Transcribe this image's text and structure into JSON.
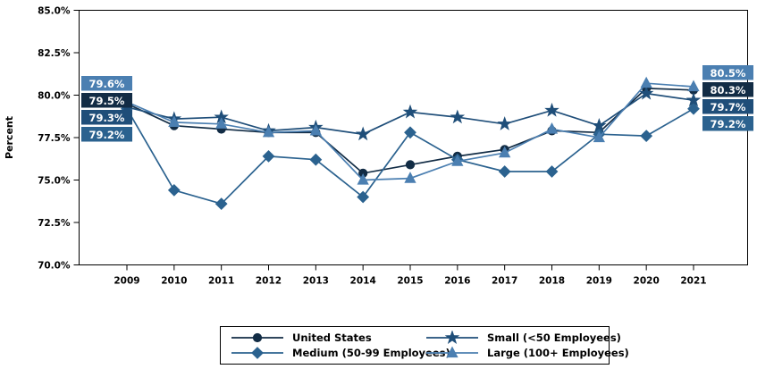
{
  "chart_data": {
    "type": "line",
    "title": "",
    "xlabel": "",
    "ylabel": "Percent",
    "ylim": [
      70.0,
      85.0
    ],
    "grid": false,
    "legend_position": "bottom",
    "yticks": [
      {
        "value": 85.0,
        "label": "85.0%"
      },
      {
        "value": 82.5,
        "label": "82.5%"
      },
      {
        "value": 80.0,
        "label": "80.0%"
      },
      {
        "value": 77.5,
        "label": "77.5%"
      },
      {
        "value": 75.0,
        "label": "75.0%"
      },
      {
        "value": 72.5,
        "label": "72.5%"
      },
      {
        "value": 70.0,
        "label": "70.0%"
      }
    ],
    "categories": [
      "2009",
      "2010",
      "2011",
      "2012",
      "2013",
      "2014",
      "2015",
      "2016",
      "2017",
      "2018",
      "2019",
      "2020",
      "2021"
    ],
    "series": [
      {
        "name": "United States",
        "slug": "united-states",
        "marker": "circle",
        "color": "#122c45",
        "values": [
          79.5,
          78.2,
          78.0,
          77.8,
          77.8,
          75.4,
          75.9,
          76.4,
          76.8,
          77.9,
          77.8,
          80.4,
          80.3
        ]
      },
      {
        "name": "Medium (50-99 Employees)",
        "slug": "medium-50-99-employees",
        "marker": "diamond",
        "color": "#2b628f",
        "values": [
          79.2,
          74.4,
          73.6,
          76.4,
          76.2,
          74.0,
          77.8,
          76.2,
          75.5,
          75.5,
          77.7,
          77.6,
          79.2
        ]
      },
      {
        "name": "Small (<50 Employees)",
        "slug": "small-lt50-employees",
        "marker": "star",
        "color": "#1f4e79",
        "values": [
          79.3,
          78.6,
          78.7,
          77.9,
          78.1,
          77.7,
          79.0,
          78.7,
          78.3,
          79.1,
          78.2,
          80.1,
          79.7
        ]
      },
      {
        "name": "Large (100+ Employees)",
        "slug": "large-100plus-employees",
        "marker": "triangle",
        "color": "#4b7fb1",
        "values": [
          79.6,
          78.4,
          78.3,
          77.8,
          77.9,
          75.0,
          75.1,
          76.1,
          76.6,
          78.0,
          77.5,
          80.7,
          80.5
        ]
      }
    ],
    "start_labels": [
      {
        "text": "79.6%",
        "color": "#4b7fb1"
      },
      {
        "text": "79.5%",
        "color": "#122c45"
      },
      {
        "text": "79.3%",
        "color": "#1f4e79"
      },
      {
        "text": "79.2%",
        "color": "#2b628f"
      }
    ],
    "end_labels": [
      {
        "text": "80.5%",
        "color": "#4b7fb1"
      },
      {
        "text": "80.3%",
        "color": "#122c45"
      },
      {
        "text": "79.7%",
        "color": "#1f4e79"
      },
      {
        "text": "79.2%",
        "color": "#2b628f"
      }
    ]
  },
  "legend": {
    "items": [
      {
        "label": "United States",
        "marker": "circle",
        "color": "#122c45"
      },
      {
        "label": "Small (<50 Employees)",
        "marker": "star",
        "color": "#1f4e79"
      },
      {
        "label": "Medium (50-99 Employees)",
        "marker": "diamond",
        "color": "#2b628f"
      },
      {
        "label": "Large (100+ Employees)",
        "marker": "triangle",
        "color": "#4b7fb1"
      }
    ]
  }
}
